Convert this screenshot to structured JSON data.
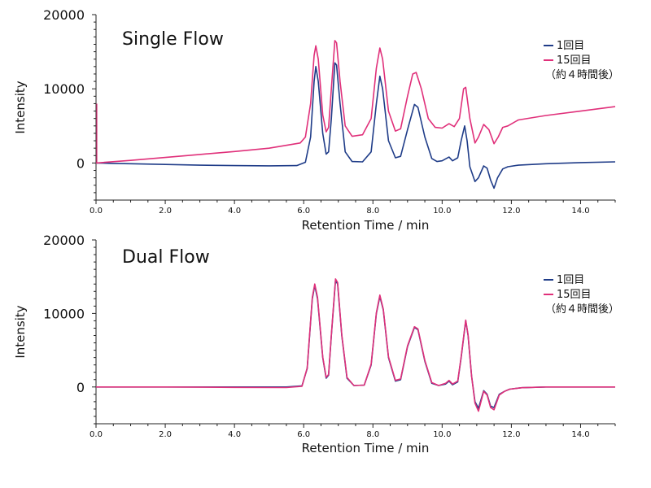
{
  "colors": {
    "series_1": "#1f3c88",
    "series_15": "#e0307a",
    "axis": "#222222"
  },
  "chart_data": [
    {
      "type": "line",
      "title": "Single Flow",
      "xlabel": "Retention Time / min",
      "ylabel": "Intensity",
      "xlim": [
        0,
        15
      ],
      "ylim": [
        -5000,
        20000
      ],
      "x_ticks": [
        "0.0",
        "2.0",
        "4.0",
        "6.0",
        "8.0",
        "10.0",
        "12.0",
        "14.0"
      ],
      "y_ticks": [
        "0",
        "10000",
        "20000"
      ],
      "legend": {
        "position": "top-right",
        "entries": [
          "1回目",
          "15回目"
        ],
        "note": "（約４時間後）"
      },
      "series": [
        {
          "name": "1回目",
          "color": "#1f3c88",
          "points": [
            [
              0,
              0
            ],
            [
              0.5,
              -50
            ],
            [
              1,
              -100
            ],
            [
              2,
              -200
            ],
            [
              3,
              -300
            ],
            [
              4,
              -350
            ],
            [
              5,
              -380
            ],
            [
              5.8,
              -350
            ],
            [
              6.05,
              100
            ],
            [
              6.2,
              3500
            ],
            [
              6.3,
              11000
            ],
            [
              6.35,
              13000
            ],
            [
              6.42,
              11000
            ],
            [
              6.55,
              4000
            ],
            [
              6.65,
              1200
            ],
            [
              6.72,
              1500
            ],
            [
              6.8,
              6000
            ],
            [
              6.9,
              13500
            ],
            [
              6.95,
              13200
            ],
            [
              7.05,
              8000
            ],
            [
              7.2,
              1500
            ],
            [
              7.4,
              200
            ],
            [
              7.7,
              150
            ],
            [
              7.95,
              1500
            ],
            [
              8.1,
              8000
            ],
            [
              8.2,
              11700
            ],
            [
              8.28,
              10000
            ],
            [
              8.45,
              3000
            ],
            [
              8.65,
              700
            ],
            [
              8.8,
              900
            ],
            [
              9.0,
              4500
            ],
            [
              9.2,
              7900
            ],
            [
              9.3,
              7500
            ],
            [
              9.5,
              3500
            ],
            [
              9.7,
              600
            ],
            [
              9.85,
              200
            ],
            [
              10.0,
              300
            ],
            [
              10.2,
              800
            ],
            [
              10.3,
              300
            ],
            [
              10.45,
              700
            ],
            [
              10.55,
              3000
            ],
            [
              10.65,
              5000
            ],
            [
              10.72,
              3000
            ],
            [
              10.8,
              -500
            ],
            [
              10.95,
              -2500
            ],
            [
              11.05,
              -2000
            ],
            [
              11.2,
              -400
            ],
            [
              11.3,
              -700
            ],
            [
              11.4,
              -2300
            ],
            [
              11.5,
              -3400
            ],
            [
              11.6,
              -2000
            ],
            [
              11.75,
              -800
            ],
            [
              11.9,
              -500
            ],
            [
              12.2,
              -300
            ],
            [
              13,
              -100
            ],
            [
              14,
              50
            ],
            [
              15,
              150
            ]
          ]
        },
        {
          "name": "15回目",
          "color": "#e0307a",
          "points": [
            [
              0,
              0
            ],
            [
              1,
              350
            ],
            [
              2,
              750
            ],
            [
              3,
              1150
            ],
            [
              4,
              1550
            ],
            [
              5,
              2000
            ],
            [
              5.9,
              2700
            ],
            [
              6.05,
              3500
            ],
            [
              6.2,
              8000
            ],
            [
              6.3,
              14500
            ],
            [
              6.35,
              15800
            ],
            [
              6.42,
              14000
            ],
            [
              6.55,
              6500
            ],
            [
              6.65,
              4200
            ],
            [
              6.72,
              4800
            ],
            [
              6.8,
              10000
            ],
            [
              6.9,
              16500
            ],
            [
              6.95,
              16200
            ],
            [
              7.05,
              11000
            ],
            [
              7.2,
              5000
            ],
            [
              7.4,
              3600
            ],
            [
              7.7,
              3800
            ],
            [
              7.95,
              6000
            ],
            [
              8.1,
              12800
            ],
            [
              8.2,
              15500
            ],
            [
              8.28,
              14000
            ],
            [
              8.45,
              7000
            ],
            [
              8.65,
              4300
            ],
            [
              8.8,
              4600
            ],
            [
              9.0,
              9000
            ],
            [
              9.15,
              12000
            ],
            [
              9.25,
              12200
            ],
            [
              9.4,
              10000
            ],
            [
              9.6,
              6000
            ],
            [
              9.8,
              4800
            ],
            [
              10.0,
              4700
            ],
            [
              10.2,
              5300
            ],
            [
              10.35,
              4900
            ],
            [
              10.5,
              6000
            ],
            [
              10.62,
              10000
            ],
            [
              10.68,
              10200
            ],
            [
              10.8,
              6000
            ],
            [
              10.95,
              2700
            ],
            [
              11.05,
              3500
            ],
            [
              11.2,
              5200
            ],
            [
              11.35,
              4500
            ],
            [
              11.5,
              2600
            ],
            [
              11.62,
              3500
            ],
            [
              11.75,
              4800
            ],
            [
              11.9,
              5000
            ],
            [
              12.2,
              5800
            ],
            [
              13,
              6400
            ],
            [
              14,
              7000
            ],
            [
              15,
              7600
            ]
          ]
        }
      ]
    },
    {
      "type": "line",
      "title": "Dual Flow",
      "xlabel": "Retention Time / min",
      "ylabel": "Intensity",
      "xlim": [
        0,
        15
      ],
      "ylim": [
        -5000,
        20000
      ],
      "x_ticks": [
        "0.0",
        "2.0",
        "4.0",
        "6.0",
        "8.0",
        "10.0",
        "12.0",
        "14.0"
      ],
      "y_ticks": [
        "0",
        "10000",
        "20000"
      ],
      "legend": {
        "position": "top-right",
        "entries": [
          "1回目",
          "15回目"
        ],
        "note": "（約４時間後）"
      },
      "series": [
        {
          "name": "1回目",
          "color": "#1f3c88",
          "points": [
            [
              0,
              0
            ],
            [
              2,
              0
            ],
            [
              4,
              0
            ],
            [
              5.5,
              0
            ],
            [
              5.95,
              150
            ],
            [
              6.1,
              2500
            ],
            [
              6.25,
              12000
            ],
            [
              6.32,
              13800
            ],
            [
              6.4,
              12000
            ],
            [
              6.55,
              4000
            ],
            [
              6.65,
              1200
            ],
            [
              6.72,
              1600
            ],
            [
              6.8,
              7000
            ],
            [
              6.92,
              14500
            ],
            [
              6.98,
              14000
            ],
            [
              7.1,
              7000
            ],
            [
              7.25,
              1200
            ],
            [
              7.45,
              200
            ],
            [
              7.75,
              250
            ],
            [
              7.95,
              3000
            ],
            [
              8.1,
              10000
            ],
            [
              8.2,
              12300
            ],
            [
              8.3,
              10500
            ],
            [
              8.45,
              4000
            ],
            [
              8.65,
              800
            ],
            [
              8.8,
              1000
            ],
            [
              9.0,
              5500
            ],
            [
              9.2,
              8100
            ],
            [
              9.3,
              7800
            ],
            [
              9.5,
              3500
            ],
            [
              9.7,
              500
            ],
            [
              9.9,
              200
            ],
            [
              10.1,
              400
            ],
            [
              10.2,
              800
            ],
            [
              10.3,
              300
            ],
            [
              10.45,
              700
            ],
            [
              10.55,
              4000
            ],
            [
              10.68,
              9000
            ],
            [
              10.75,
              7000
            ],
            [
              10.85,
              1500
            ],
            [
              10.95,
              -2000
            ],
            [
              11.05,
              -2900
            ],
            [
              11.2,
              -500
            ],
            [
              11.3,
              -1000
            ],
            [
              11.4,
              -2600
            ],
            [
              11.5,
              -2800
            ],
            [
              11.65,
              -1000
            ],
            [
              11.8,
              -600
            ],
            [
              11.95,
              -300
            ],
            [
              12.3,
              -100
            ],
            [
              13,
              0
            ],
            [
              14,
              0
            ],
            [
              15,
              0
            ]
          ]
        },
        {
          "name": "15回目",
          "color": "#e0307a",
          "points": [
            [
              0,
              0
            ],
            [
              2,
              0
            ],
            [
              4,
              -50
            ],
            [
              5.5,
              -80
            ],
            [
              5.95,
              100
            ],
            [
              6.1,
              2600
            ],
            [
              6.25,
              12200
            ],
            [
              6.32,
              14000
            ],
            [
              6.4,
              12200
            ],
            [
              6.55,
              4100
            ],
            [
              6.65,
              1300
            ],
            [
              6.72,
              1700
            ],
            [
              6.8,
              7100
            ],
            [
              6.92,
              14700
            ],
            [
              6.98,
              14200
            ],
            [
              7.1,
              7100
            ],
            [
              7.25,
              1300
            ],
            [
              7.45,
              200
            ],
            [
              7.75,
              250
            ],
            [
              7.95,
              3100
            ],
            [
              8.1,
              10100
            ],
            [
              8.2,
              12500
            ],
            [
              8.3,
              10600
            ],
            [
              8.45,
              4100
            ],
            [
              8.65,
              900
            ],
            [
              8.8,
              1100
            ],
            [
              9.0,
              5600
            ],
            [
              9.2,
              8200
            ],
            [
              9.3,
              7900
            ],
            [
              9.5,
              3600
            ],
            [
              9.7,
              600
            ],
            [
              9.9,
              200
            ],
            [
              10.1,
              500
            ],
            [
              10.2,
              900
            ],
            [
              10.3,
              400
            ],
            [
              10.45,
              800
            ],
            [
              10.55,
              4100
            ],
            [
              10.68,
              9100
            ],
            [
              10.75,
              7100
            ],
            [
              10.85,
              1500
            ],
            [
              10.95,
              -2200
            ],
            [
              11.05,
              -3300
            ],
            [
              11.2,
              -600
            ],
            [
              11.3,
              -1100
            ],
            [
              11.4,
              -2800
            ],
            [
              11.5,
              -3100
            ],
            [
              11.65,
              -1100
            ],
            [
              11.8,
              -600
            ],
            [
              11.95,
              -300
            ],
            [
              12.3,
              -100
            ],
            [
              13,
              0
            ],
            [
              14,
              0
            ],
            [
              15,
              0
            ]
          ]
        }
      ]
    }
  ]
}
